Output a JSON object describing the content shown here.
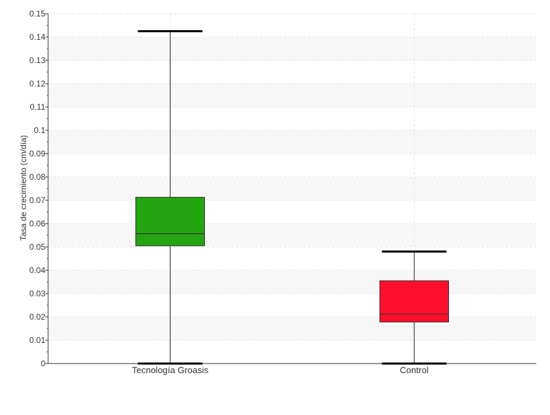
{
  "chart_data": {
    "type": "boxplot",
    "ylabel": "Tasa de crecimiento (cm/día)",
    "xlabel": "",
    "ylim": [
      0,
      0.15
    ],
    "yticks": [
      0,
      0.01,
      0.02,
      0.03,
      0.04,
      0.05,
      0.06,
      0.07,
      0.08,
      0.09,
      0.1,
      0.11,
      0.12,
      0.13,
      0.14,
      0.15
    ],
    "ytick_labels": [
      "0",
      "0.01",
      "0.02",
      "0.03",
      "0.04",
      "0.05",
      "0.06",
      "0.07",
      "0.08",
      "0.09",
      "0.1",
      "0.11",
      "0.12",
      "0.13",
      "0.14",
      "0.15"
    ],
    "grid": true,
    "categories": [
      "Tecnología Groasis",
      "Control"
    ],
    "boxes": [
      {
        "category": "Tecnología Groasis",
        "min": 0.0,
        "q1": 0.0505,
        "median": 0.0557,
        "q3": 0.0713,
        "max": 0.1425,
        "color": "#22a50e"
      },
      {
        "category": "Control",
        "min": 0.0,
        "q1": 0.0178,
        "median": 0.0212,
        "q3": 0.0355,
        "max": 0.048,
        "color": "#ff0f2a"
      }
    ]
  }
}
